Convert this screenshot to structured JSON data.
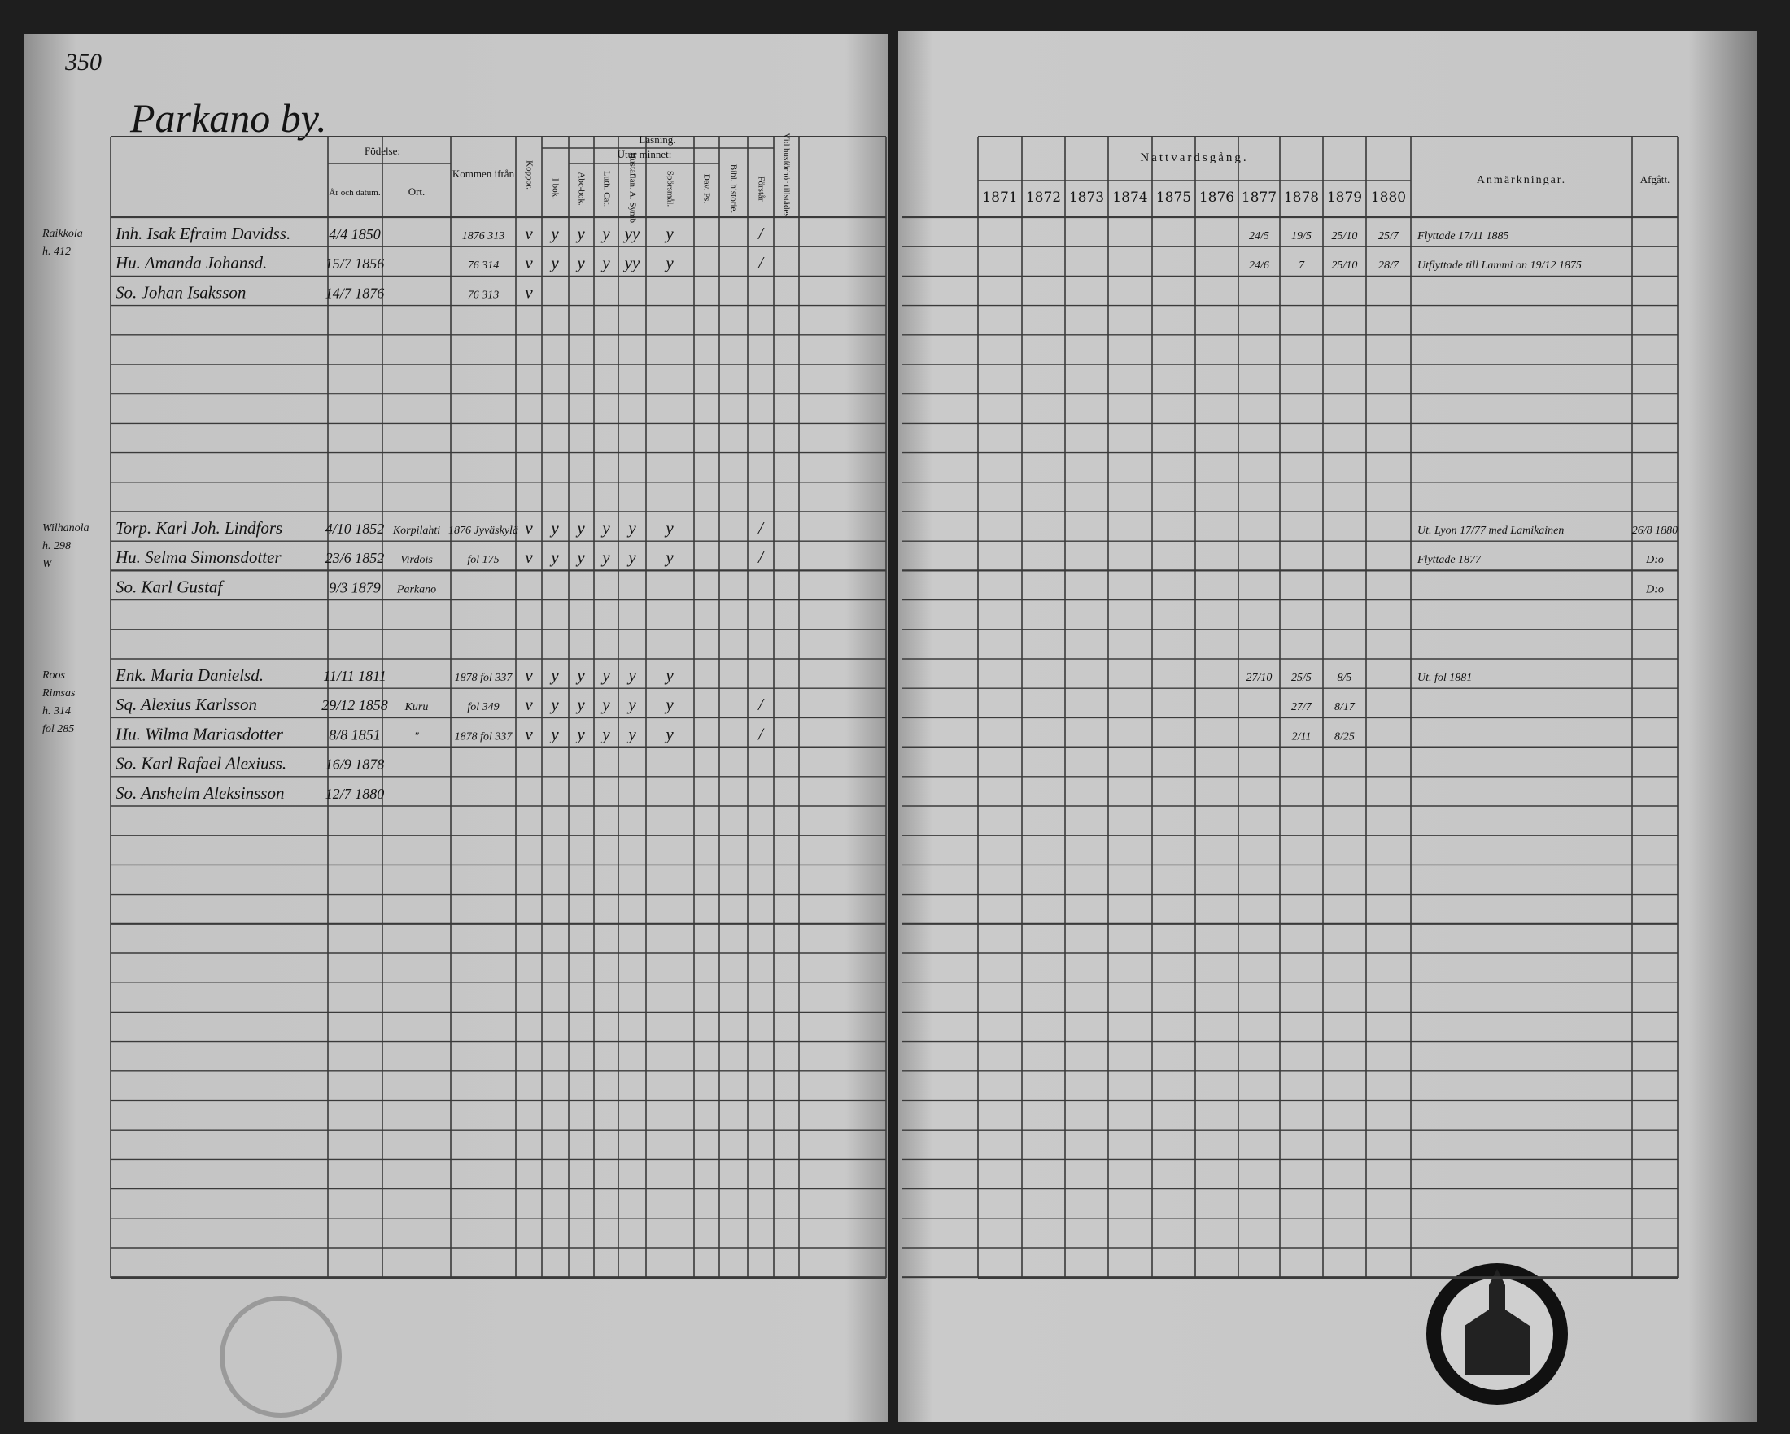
{
  "page_number": "350",
  "village": "Parkano by.",
  "left_header": {
    "birth": "Födelse:",
    "birth_date": "År och datum.",
    "birth_place": "Ort.",
    "came_from": "Kommen ifrån",
    "smallpox": "Koppor.",
    "reading": "Läsning.",
    "by_heart": "Utur minnet:",
    "in_book": "I bok.",
    "abc": "Abc-bok.",
    "catechism": "Luth. Cat.",
    "table_of_duties": "Hustaflan. A. Symb.",
    "questions": "Spörsmål.",
    "psalms": "Dav. Ps.",
    "bible_history": "Bibl. historie.",
    "understands": "Förstår",
    "present": "Vid husförhör tillstädes"
  },
  "right_header": {
    "communion": "Nattvardsgång.",
    "years": [
      "1871",
      "1872",
      "1873",
      "1874",
      "1875",
      "1876",
      "1877",
      "1878",
      "1879",
      "1880"
    ],
    "remarks": "Anmärkningar.",
    "departed": "Afgått."
  },
  "households": [
    {
      "margin": [
        "Raikkola",
        "h. 412"
      ],
      "members": [
        {
          "name": "Inh. Isak Efraim Davidss.",
          "date": "4/4 1850",
          "from": "1876 313",
          "smallpox": "v",
          "reading": [
            "y",
            "y",
            "y",
            "yy",
            "y"
          ],
          "understands": "/",
          "communion": [
            null,
            null,
            null,
            null,
            null,
            null,
            "24/5",
            "19/5",
            "25/10",
            "25/7"
          ],
          "remarks": "Flyttade 17/11 1885"
        },
        {
          "name": "Hu. Amanda Johansd.",
          "date": "15/7 1856",
          "from": "76 314",
          "smallpox": "v",
          "reading": [
            "y",
            "y",
            "y",
            "yy",
            "y"
          ],
          "understands": "/",
          "communion": [
            null,
            null,
            null,
            null,
            null,
            null,
            "24/6",
            "7",
            "25/10",
            "28/7"
          ],
          "remarks": "Utflyttade till Lammi on 19/12 1875"
        },
        {
          "name": "So. Johan Isaksson",
          "date": "14/7 1876",
          "from": "76 313",
          "smallpox": "v"
        }
      ]
    },
    {
      "margin": [
        "Wilhanola",
        "h. 298",
        "W"
      ],
      "members": [
        {
          "name": "Torp. Karl Joh. Lindfors",
          "date": "4/10 1852",
          "place": "Korpilahti",
          "from": "1876 Jyväskylä",
          "smallpox": "v",
          "reading": [
            "y",
            "y",
            "y",
            "y",
            "y"
          ],
          "understands": "/",
          "remarks": "Ut. Lyon 17/77 med Lamikainen",
          "departed": "26/8 1880"
        },
        {
          "name": "Hu. Selma Simonsdotter",
          "date": "23/6 1852",
          "place": "Virdois",
          "from": "fol 175",
          "smallpox": "v",
          "reading": [
            "y",
            "y",
            "y",
            "y",
            "y"
          ],
          "understands": "/",
          "remarks": "Flyttade 1877",
          "departed": "D:o"
        },
        {
          "name": "So. Karl Gustaf",
          "date": "9/3 1879",
          "place": "Parkano",
          "departed": "D:o"
        }
      ]
    },
    {
      "margin": [
        "Roos",
        "Rimsas",
        "h. 314",
        "fol 285"
      ],
      "members": [
        {
          "name": "Enk. Maria Danielsd.",
          "date": "11/11 1811",
          "from": "1878 fol 337",
          "smallpox": "v",
          "reading": [
            "y",
            "y",
            "y",
            "y",
            "y"
          ],
          "communion": [
            null,
            null,
            null,
            null,
            null,
            null,
            "27/10",
            "25/5",
            "8/5",
            null
          ],
          "remarks": "Ut. fol 1881"
        },
        {
          "name": "Sq. Alexius Karlsson",
          "date": "29/12 1858",
          "place": "Kuru",
          "from": "fol 349",
          "smallpox": "v",
          "reading": [
            "y",
            "y",
            "y",
            "y",
            "y"
          ],
          "understands": "/",
          "communion": [
            null,
            null,
            null,
            null,
            null,
            null,
            null,
            "27/7",
            "8/17",
            null
          ]
        },
        {
          "name": "Hu. Wilma Mariasdotter",
          "date": "8/8 1851",
          "place": "\"",
          "from": "1878 fol 337",
          "smallpox": "v",
          "reading": [
            "y",
            "y",
            "y",
            "y",
            "y"
          ],
          "understands": "/",
          "communion": [
            null,
            null,
            null,
            null,
            null,
            null,
            null,
            "2/11",
            "8/25",
            null
          ]
        },
        {
          "name": "So. Karl Rafael Alexiuss.",
          "date": "16/9 1878"
        },
        {
          "name": "So. Anshelm Aleksinsson",
          "date": "12/7 1880"
        }
      ]
    }
  ]
}
